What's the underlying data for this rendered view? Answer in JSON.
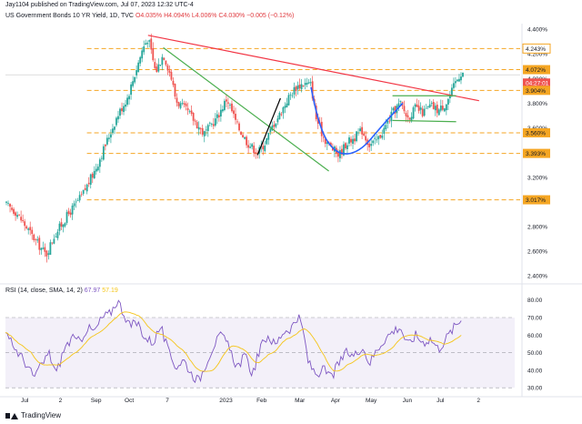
{
  "header": {
    "publisher": "Jay1104 published on TradingView.com, Jul 07, 2023 12:32 UTC-4",
    "symbol": "US Government Bonds 10 YR Yield, 1D, TVC",
    "open": "O4.035%",
    "high": "H4.094%",
    "low": "L4.006%",
    "close": "C4.030%",
    "change": "−0.005 (−0.12%)"
  },
  "footer": {
    "brand": "TradingView"
  },
  "colors": {
    "up": "#26a69a",
    "down": "#ef5350",
    "level": "#f5a623",
    "resistance": "#f23645",
    "trend": "#4caf50",
    "cup": "#2962ff",
    "rsi": "#7e57c2",
    "rsi_ma": "#f5c518"
  },
  "chart_data": [
    {
      "type": "candlestick",
      "ylim": [
        2.35,
        4.43
      ],
      "y_ticks": [
        "4.400%",
        "4.200%",
        "4.000%",
        "3.800%",
        "3.600%",
        "3.400%",
        "3.200%",
        "3.000%",
        "2.800%",
        "2.600%",
        "2.400%"
      ],
      "y_tick_values": [
        4.4,
        4.2,
        4.0,
        3.8,
        3.6,
        3.4,
        3.2,
        3.0,
        2.8,
        2.6,
        2.4
      ],
      "x_ticks": [
        "Jul",
        "2",
        "Sep",
        "Oct",
        "7",
        "2023",
        "Feb",
        "Mar",
        "Apr",
        "May",
        "Jun",
        "Jul",
        "2"
      ],
      "x_tick_positions": [
        0.038,
        0.108,
        0.178,
        0.243,
        0.318,
        0.433,
        0.503,
        0.578,
        0.648,
        0.718,
        0.789,
        0.854,
        0.929
      ],
      "x_range": [
        0,
        1
      ],
      "key_points": [
        {
          "x": 0.0,
          "y": 2.98
        },
        {
          "x": 0.02,
          "y": 2.92
        },
        {
          "x": 0.04,
          "y": 2.8
        },
        {
          "x": 0.06,
          "y": 2.68
        },
        {
          "x": 0.08,
          "y": 2.57
        },
        {
          "x": 0.095,
          "y": 2.72
        },
        {
          "x": 0.12,
          "y": 2.88
        },
        {
          "x": 0.15,
          "y": 3.05
        },
        {
          "x": 0.175,
          "y": 3.25
        },
        {
          "x": 0.2,
          "y": 3.5
        },
        {
          "x": 0.22,
          "y": 3.7
        },
        {
          "x": 0.24,
          "y": 3.85
        },
        {
          "x": 0.255,
          "y": 4.05
        },
        {
          "x": 0.27,
          "y": 4.25
        },
        {
          "x": 0.28,
          "y": 4.33
        },
        {
          "x": 0.295,
          "y": 4.05
        },
        {
          "x": 0.31,
          "y": 4.2
        },
        {
          "x": 0.325,
          "y": 4.02
        },
        {
          "x": 0.335,
          "y": 3.82
        },
        {
          "x": 0.36,
          "y": 3.72
        },
        {
          "x": 0.39,
          "y": 3.55
        },
        {
          "x": 0.415,
          "y": 3.68
        },
        {
          "x": 0.435,
          "y": 3.84
        },
        {
          "x": 0.455,
          "y": 3.62
        },
        {
          "x": 0.475,
          "y": 3.48
        },
        {
          "x": 0.495,
          "y": 3.4
        },
        {
          "x": 0.51,
          "y": 3.48
        },
        {
          "x": 0.525,
          "y": 3.62
        },
        {
          "x": 0.54,
          "y": 3.72
        },
        {
          "x": 0.555,
          "y": 3.84
        },
        {
          "x": 0.57,
          "y": 3.93
        },
        {
          "x": 0.585,
          "y": 3.96
        },
        {
          "x": 0.6,
          "y": 3.95
        },
        {
          "x": 0.61,
          "y": 3.68
        },
        {
          "x": 0.625,
          "y": 3.52
        },
        {
          "x": 0.64,
          "y": 3.44
        },
        {
          "x": 0.655,
          "y": 3.38
        },
        {
          "x": 0.67,
          "y": 3.48
        },
        {
          "x": 0.685,
          "y": 3.52
        },
        {
          "x": 0.7,
          "y": 3.58
        },
        {
          "x": 0.715,
          "y": 3.46
        },
        {
          "x": 0.73,
          "y": 3.5
        },
        {
          "x": 0.745,
          "y": 3.6
        },
        {
          "x": 0.76,
          "y": 3.72
        },
        {
          "x": 0.775,
          "y": 3.8
        },
        {
          "x": 0.79,
          "y": 3.68
        },
        {
          "x": 0.805,
          "y": 3.76
        },
        {
          "x": 0.82,
          "y": 3.72
        },
        {
          "x": 0.835,
          "y": 3.78
        },
        {
          "x": 0.85,
          "y": 3.74
        },
        {
          "x": 0.865,
          "y": 3.8
        },
        {
          "x": 0.875,
          "y": 3.88
        },
        {
          "x": 0.885,
          "y": 3.98
        },
        {
          "x": 0.895,
          "y": 4.05
        }
      ],
      "price_labels": [
        {
          "label": "4.243%",
          "value": 4.243,
          "style": "level-outline"
        },
        {
          "label": "4.072%",
          "value": 4.072,
          "style": "level"
        },
        {
          "label": "04:27:01",
          "value": 4.03,
          "style": "countdown"
        },
        {
          "label": "3.904%",
          "value": 3.904,
          "style": "level"
        },
        {
          "label": "3.560%",
          "value": 3.56,
          "style": "level"
        },
        {
          "label": "3.393%",
          "value": 3.393,
          "style": "level"
        },
        {
          "label": "3.017%",
          "value": 3.017,
          "style": "level"
        }
      ],
      "horizontal_levels": [
        4.243,
        4.072,
        3.904,
        3.56,
        3.393,
        3.017
      ],
      "trendlines": [
        {
          "kind": "resistance",
          "points": [
            [
              0.28,
              4.35
            ],
            [
              0.93,
              3.82
            ]
          ]
        },
        {
          "kind": "falling-support",
          "points": [
            [
              0.31,
              4.25
            ],
            [
              0.635,
              3.25
            ]
          ]
        },
        {
          "kind": "breakout-swing",
          "points": [
            [
              0.495,
              3.38
            ],
            [
              0.54,
              3.84
            ]
          ]
        },
        {
          "kind": "consolidation-top",
          "points": [
            [
              0.76,
              3.86
            ],
            [
              0.885,
              3.86
            ]
          ]
        },
        {
          "kind": "consolidation-bottom",
          "points": [
            [
              0.76,
              3.66
            ],
            [
              0.885,
              3.65
            ]
          ]
        }
      ],
      "cup_curve": [
        [
          0.6,
          3.93
        ],
        [
          0.615,
          3.6
        ],
        [
          0.65,
          3.38
        ],
        [
          0.695,
          3.4
        ],
        [
          0.74,
          3.62
        ],
        [
          0.78,
          3.8
        ]
      ]
    },
    {
      "type": "line",
      "name": "RSI",
      "ylim": [
        28,
        84
      ],
      "y_ticks": [
        "80.00",
        "70.00",
        "60.00",
        "50.00",
        "40.00",
        "30.00"
      ],
      "y_tick_values": [
        80,
        70,
        60,
        50,
        40,
        30
      ],
      "band": [
        30,
        70
      ],
      "x_range": [
        0,
        1
      ],
      "rsi_points": [
        {
          "x": 0.0,
          "y": 60
        },
        {
          "x": 0.02,
          "y": 52
        },
        {
          "x": 0.04,
          "y": 44
        },
        {
          "x": 0.055,
          "y": 36
        },
        {
          "x": 0.07,
          "y": 42
        },
        {
          "x": 0.085,
          "y": 50
        },
        {
          "x": 0.1,
          "y": 38
        },
        {
          "x": 0.115,
          "y": 52
        },
        {
          "x": 0.13,
          "y": 58
        },
        {
          "x": 0.145,
          "y": 56
        },
        {
          "x": 0.16,
          "y": 64
        },
        {
          "x": 0.175,
          "y": 62
        },
        {
          "x": 0.19,
          "y": 70
        },
        {
          "x": 0.205,
          "y": 72
        },
        {
          "x": 0.22,
          "y": 80
        },
        {
          "x": 0.23,
          "y": 74
        },
        {
          "x": 0.245,
          "y": 65
        },
        {
          "x": 0.26,
          "y": 67
        },
        {
          "x": 0.275,
          "y": 58
        },
        {
          "x": 0.29,
          "y": 56
        },
        {
          "x": 0.305,
          "y": 65
        },
        {
          "x": 0.32,
          "y": 50
        },
        {
          "x": 0.335,
          "y": 42
        },
        {
          "x": 0.35,
          "y": 46
        },
        {
          "x": 0.365,
          "y": 38
        },
        {
          "x": 0.38,
          "y": 34
        },
        {
          "x": 0.395,
          "y": 45
        },
        {
          "x": 0.41,
          "y": 55
        },
        {
          "x": 0.425,
          "y": 60
        },
        {
          "x": 0.44,
          "y": 52
        },
        {
          "x": 0.455,
          "y": 42
        },
        {
          "x": 0.47,
          "y": 48
        },
        {
          "x": 0.485,
          "y": 38
        },
        {
          "x": 0.5,
          "y": 52
        },
        {
          "x": 0.515,
          "y": 60
        },
        {
          "x": 0.53,
          "y": 54
        },
        {
          "x": 0.545,
          "y": 62
        },
        {
          "x": 0.56,
          "y": 64
        },
        {
          "x": 0.575,
          "y": 70
        },
        {
          "x": 0.585,
          "y": 62
        },
        {
          "x": 0.595,
          "y": 44
        },
        {
          "x": 0.61,
          "y": 38
        },
        {
          "x": 0.625,
          "y": 40
        },
        {
          "x": 0.64,
          "y": 36
        },
        {
          "x": 0.655,
          "y": 44
        },
        {
          "x": 0.67,
          "y": 50
        },
        {
          "x": 0.685,
          "y": 48
        },
        {
          "x": 0.7,
          "y": 54
        },
        {
          "x": 0.715,
          "y": 44
        },
        {
          "x": 0.73,
          "y": 52
        },
        {
          "x": 0.745,
          "y": 58
        },
        {
          "x": 0.76,
          "y": 62
        },
        {
          "x": 0.775,
          "y": 65
        },
        {
          "x": 0.79,
          "y": 54
        },
        {
          "x": 0.805,
          "y": 60
        },
        {
          "x": 0.82,
          "y": 56
        },
        {
          "x": 0.835,
          "y": 58
        },
        {
          "x": 0.85,
          "y": 52
        },
        {
          "x": 0.865,
          "y": 58
        },
        {
          "x": 0.88,
          "y": 64
        },
        {
          "x": 0.895,
          "y": 69
        }
      ],
      "rsi_value_label": "67.97",
      "ma_value_label": "57.19",
      "title": "RSI (14, close, SMA, 14, 2)"
    }
  ]
}
